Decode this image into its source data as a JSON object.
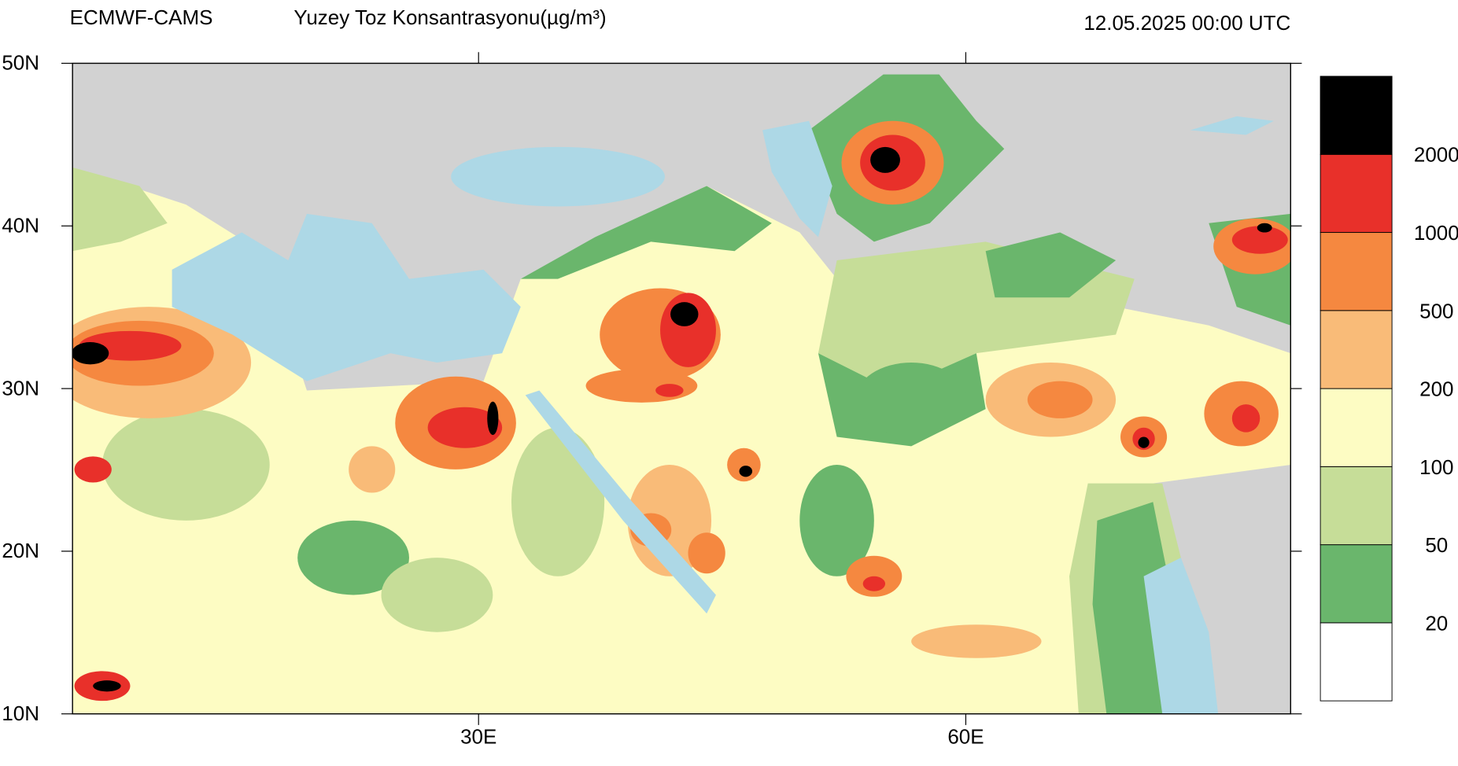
{
  "header": {
    "source": "ECMWF-CAMS",
    "title": "Yuzey Toz Konsantrasyonu(µg/m³)",
    "time": "12.05.2025 00:00 UTC"
  },
  "map": {
    "lon_range": [
      5,
      80
    ],
    "lat_range": [
      10,
      50
    ],
    "lat_ticks": [
      {
        "value": 50,
        "label": "50N"
      },
      {
        "value": 40,
        "label": "40N"
      },
      {
        "value": 30,
        "label": "30N"
      },
      {
        "value": 20,
        "label": "20N"
      },
      {
        "value": 10,
        "label": "10N"
      }
    ],
    "lon_ticks": [
      {
        "value": 30,
        "label": "30E"
      },
      {
        "value": 60,
        "label": "60E"
      }
    ]
  },
  "colorbar": {
    "levels": [
      20,
      50,
      100,
      200,
      500,
      1000,
      2000
    ],
    "colors": [
      "#ffffff",
      "#6ab66c",
      "#c6dd98",
      "#fdfcc3",
      "#f9bb78",
      "#f58840",
      "#e8302a",
      "#000000"
    ]
  }
}
